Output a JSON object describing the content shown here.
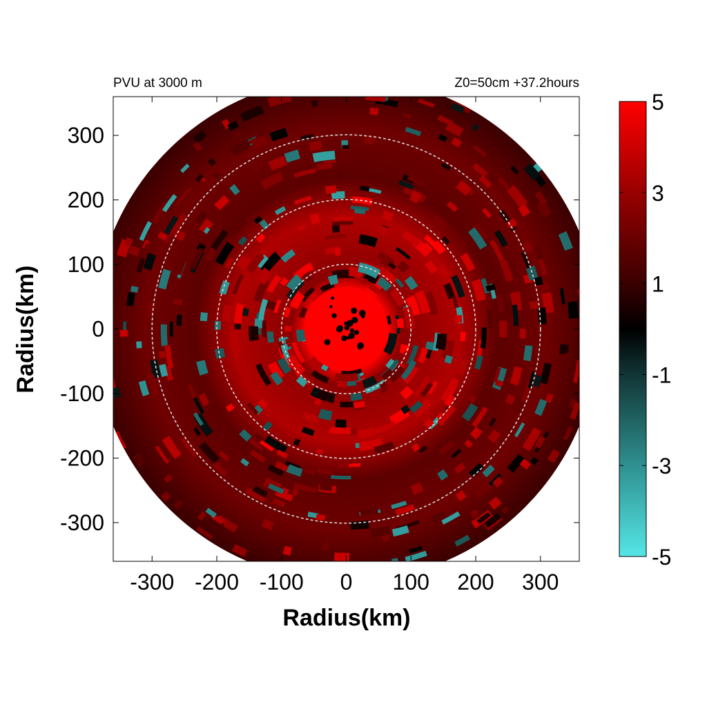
{
  "chart_data": {
    "type": "heatmap",
    "title_left": "PVU at  3000 m",
    "title_right": "Z0=50cm  +37.2hours",
    "xlabel": "Radius(km)",
    "ylabel": "Radius(km)",
    "xlim": [
      -360,
      360
    ],
    "ylim": [
      -360,
      360
    ],
    "x_ticks": [
      -300,
      -200,
      -100,
      0,
      100,
      200,
      300
    ],
    "y_ticks": [
      300,
      200,
      100,
      0,
      -100,
      -200,
      -300
    ],
    "reference_circle_radii_km": [
      100,
      200,
      300
    ],
    "plotted_radius_km": 390,
    "colorbar": {
      "min": -5,
      "max": 5,
      "tick_labels": [
        "5",
        "3",
        "1",
        "-1",
        "-3",
        "-5"
      ],
      "tick_values": [
        5,
        3,
        1,
        -1,
        -3,
        -5
      ],
      "stops": [
        {
          "value": -5,
          "color": "#55e6e6"
        },
        {
          "value": -3,
          "color": "#2f9090"
        },
        {
          "value": -1,
          "color": "#123535"
        },
        {
          "value": 0,
          "color": "#000000"
        },
        {
          "value": 1,
          "color": "#3a0000"
        },
        {
          "value": 3,
          "color": "#990000"
        },
        {
          "value": 5,
          "color": "#ff0000"
        }
      ]
    },
    "field_description_values": {
      "core_radius_km": 65,
      "core_value": 5,
      "inner_ring_value": 3.5,
      "background_value": 1.5,
      "negative_patch_value": -3.5
    }
  }
}
